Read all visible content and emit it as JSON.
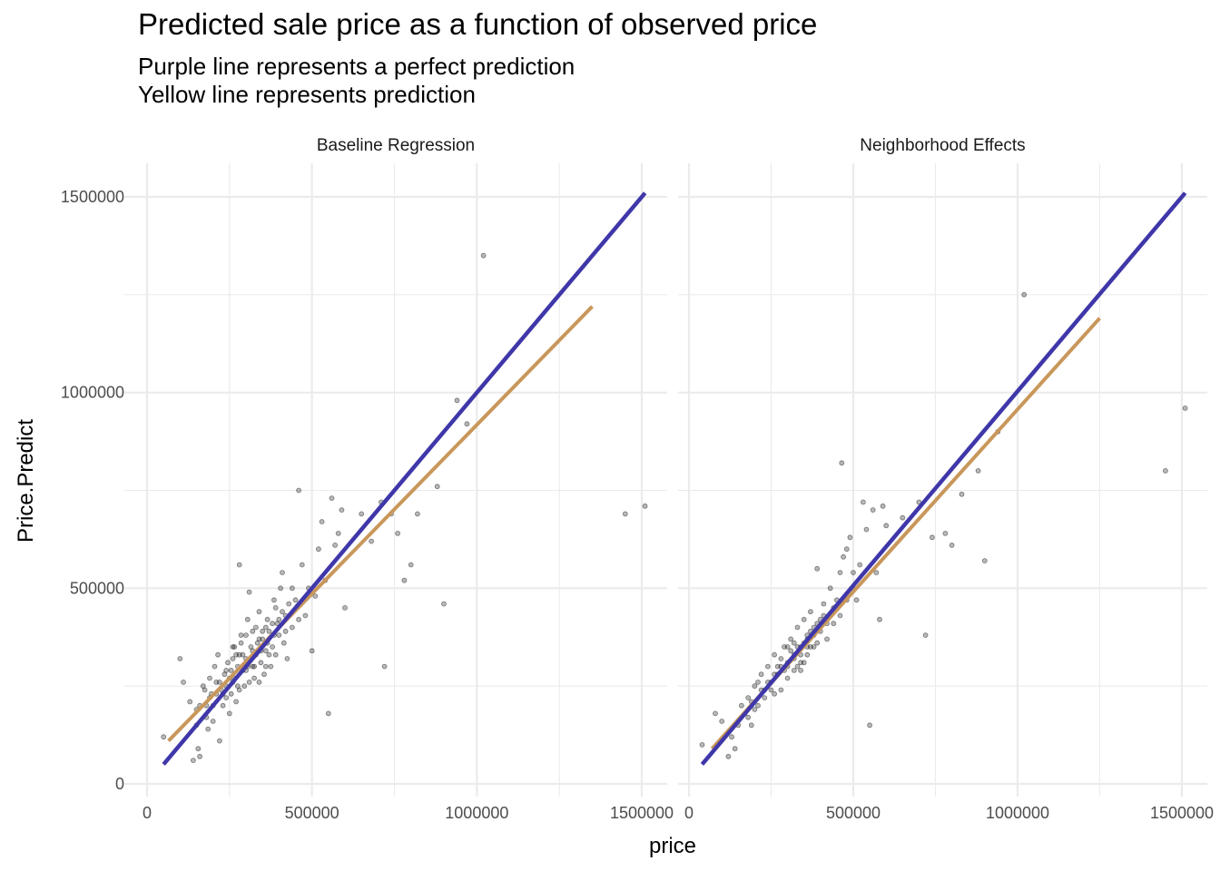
{
  "chart_data": {
    "type": "scatter",
    "title": "Predicted sale price as a function of observed price",
    "subtitle_lines": [
      "Purple line represents a perfect prediction",
      "Yellow line represents prediction"
    ],
    "xlabel": "price",
    "ylabel": "Price.Predict",
    "xlim": [
      0,
      1500000
    ],
    "ylim": [
      0,
      1500000
    ],
    "x_ticks": [
      0,
      500000,
      1000000,
      1500000
    ],
    "x_tick_labels": [
      "0",
      "500000",
      "1000000",
      "1500000"
    ],
    "y_ticks": [
      0,
      500000,
      1000000,
      1500000
    ],
    "y_tick_labels": [
      "0",
      "500000",
      "1000000",
      "1500000"
    ],
    "grid": true,
    "colors": {
      "perfect_line": "#3f37a9",
      "fit_line": "#c9975a",
      "points": "#000000",
      "grid": "#ebebeb"
    },
    "panels": [
      {
        "name": "Baseline Regression",
        "perfect_line": [
          [
            50000,
            50000
          ],
          [
            1510000,
            1510000
          ]
        ],
        "fit_line": [
          [
            65000,
            110000
          ],
          [
            1350000,
            1220000
          ]
        ],
        "points": [
          [
            50000,
            120000
          ],
          [
            100000,
            320000
          ],
          [
            110000,
            260000
          ],
          [
            130000,
            210000
          ],
          [
            140000,
            60000
          ],
          [
            150000,
            190000
          ],
          [
            155000,
            90000
          ],
          [
            160000,
            70000
          ],
          [
            175000,
            240000
          ],
          [
            180000,
            170000
          ],
          [
            185000,
            140000
          ],
          [
            190000,
            270000
          ],
          [
            195000,
            230000
          ],
          [
            200000,
            160000
          ],
          [
            205000,
            300000
          ],
          [
            210000,
            260000
          ],
          [
            215000,
            330000
          ],
          [
            220000,
            110000
          ],
          [
            225000,
            240000
          ],
          [
            230000,
            200000
          ],
          [
            235000,
            280000
          ],
          [
            240000,
            250000
          ],
          [
            245000,
            310000
          ],
          [
            250000,
            180000
          ],
          [
            255000,
            230000
          ],
          [
            260000,
            350000
          ],
          [
            265000,
            270000
          ],
          [
            270000,
            210000
          ],
          [
            275000,
            300000
          ],
          [
            280000,
            560000
          ],
          [
            285000,
            380000
          ],
          [
            290000,
            330000
          ],
          [
            295000,
            250000
          ],
          [
            300000,
            290000
          ],
          [
            305000,
            420000
          ],
          [
            310000,
            490000
          ],
          [
            315000,
            350000
          ],
          [
            320000,
            300000
          ],
          [
            325000,
            270000
          ],
          [
            330000,
            400000
          ],
          [
            335000,
            360000
          ],
          [
            340000,
            440000
          ],
          [
            345000,
            310000
          ],
          [
            350000,
            370000
          ],
          [
            355000,
            280000
          ],
          [
            360000,
            340000
          ],
          [
            365000,
            420000
          ],
          [
            370000,
            390000
          ],
          [
            375000,
            300000
          ],
          [
            380000,
            350000
          ],
          [
            385000,
            470000
          ],
          [
            390000,
            330000
          ],
          [
            395000,
            410000
          ],
          [
            400000,
            380000
          ],
          [
            405000,
            500000
          ],
          [
            410000,
            540000
          ],
          [
            415000,
            360000
          ],
          [
            420000,
            430000
          ],
          [
            425000,
            320000
          ],
          [
            430000,
            460000
          ],
          [
            440000,
            400000
          ],
          [
            450000,
            470000
          ],
          [
            460000,
            750000
          ],
          [
            470000,
            560000
          ],
          [
            480000,
            430000
          ],
          [
            490000,
            500000
          ],
          [
            500000,
            340000
          ],
          [
            510000,
            480000
          ],
          [
            520000,
            600000
          ],
          [
            530000,
            670000
          ],
          [
            540000,
            520000
          ],
          [
            550000,
            180000
          ],
          [
            560000,
            730000
          ],
          [
            570000,
            610000
          ],
          [
            580000,
            640000
          ],
          [
            590000,
            700000
          ],
          [
            600000,
            450000
          ],
          [
            650000,
            690000
          ],
          [
            680000,
            620000
          ],
          [
            710000,
            720000
          ],
          [
            720000,
            300000
          ],
          [
            740000,
            690000
          ],
          [
            760000,
            640000
          ],
          [
            780000,
            520000
          ],
          [
            800000,
            560000
          ],
          [
            820000,
            690000
          ],
          [
            880000,
            760000
          ],
          [
            900000,
            460000
          ],
          [
            940000,
            980000
          ],
          [
            970000,
            920000
          ],
          [
            1020000,
            1350000
          ],
          [
            1450000,
            690000
          ],
          [
            1510000,
            710000
          ],
          [
            230000,
            230000
          ],
          [
            240000,
            290000
          ],
          [
            260000,
            260000
          ],
          [
            280000,
            240000
          ],
          [
            300000,
            320000
          ],
          [
            320000,
            340000
          ],
          [
            340000,
            260000
          ],
          [
            360000,
            300000
          ],
          [
            380000,
            410000
          ],
          [
            260000,
            320000
          ],
          [
            250000,
            270000
          ],
          [
            270000,
            330000
          ],
          [
            290000,
            290000
          ],
          [
            310000,
            260000
          ],
          [
            330000,
            330000
          ],
          [
            350000,
            390000
          ],
          [
            370000,
            330000
          ],
          [
            390000,
            450000
          ],
          [
            410000,
            440000
          ],
          [
            420000,
            390000
          ],
          [
            440000,
            500000
          ],
          [
            460000,
            420000
          ],
          [
            200000,
            200000
          ],
          [
            210000,
            230000
          ],
          [
            220000,
            260000
          ],
          [
            190000,
            220000
          ],
          [
            180000,
            200000
          ],
          [
            170000,
            250000
          ],
          [
            160000,
            200000
          ],
          [
            150000,
            150000
          ],
          [
            240000,
            220000
          ],
          [
            300000,
            380000
          ],
          [
            320000,
            390000
          ],
          [
            340000,
            370000
          ],
          [
            360000,
            400000
          ],
          [
            280000,
            330000
          ],
          [
            265000,
            350000
          ],
          [
            275000,
            250000
          ],
          [
            305000,
            300000
          ],
          [
            325000,
            300000
          ],
          [
            345000,
            340000
          ],
          [
            365000,
            360000
          ],
          [
            385000,
            380000
          ],
          [
            400000,
            420000
          ],
          [
            255000,
            290000
          ],
          [
            285000,
            360000
          ]
        ]
      },
      {
        "name": "Neighborhood Effects",
        "perfect_line": [
          [
            40000,
            50000
          ],
          [
            1510000,
            1510000
          ]
        ],
        "fit_line": [
          [
            70000,
            90000
          ],
          [
            1250000,
            1190000
          ]
        ],
        "points": [
          [
            40000,
            100000
          ],
          [
            80000,
            180000
          ],
          [
            100000,
            160000
          ],
          [
            120000,
            70000
          ],
          [
            130000,
            120000
          ],
          [
            140000,
            90000
          ],
          [
            150000,
            150000
          ],
          [
            160000,
            200000
          ],
          [
            170000,
            180000
          ],
          [
            180000,
            220000
          ],
          [
            190000,
            150000
          ],
          [
            200000,
            250000
          ],
          [
            210000,
            200000
          ],
          [
            220000,
            280000
          ],
          [
            230000,
            240000
          ],
          [
            240000,
            300000
          ],
          [
            250000,
            260000
          ],
          [
            260000,
            330000
          ],
          [
            270000,
            280000
          ],
          [
            280000,
            240000
          ],
          [
            290000,
            350000
          ],
          [
            300000,
            310000
          ],
          [
            310000,
            370000
          ],
          [
            320000,
            330000
          ],
          [
            330000,
            400000
          ],
          [
            340000,
            290000
          ],
          [
            350000,
            420000
          ],
          [
            360000,
            370000
          ],
          [
            370000,
            440000
          ],
          [
            380000,
            350000
          ],
          [
            390000,
            550000
          ],
          [
            400000,
            390000
          ],
          [
            410000,
            460000
          ],
          [
            420000,
            370000
          ],
          [
            430000,
            500000
          ],
          [
            440000,
            410000
          ],
          [
            450000,
            470000
          ],
          [
            460000,
            540000
          ],
          [
            465000,
            820000
          ],
          [
            470000,
            580000
          ],
          [
            480000,
            600000
          ],
          [
            490000,
            630000
          ],
          [
            500000,
            540000
          ],
          [
            510000,
            470000
          ],
          [
            520000,
            560000
          ],
          [
            530000,
            720000
          ],
          [
            540000,
            650000
          ],
          [
            550000,
            150000
          ],
          [
            560000,
            700000
          ],
          [
            570000,
            540000
          ],
          [
            580000,
            420000
          ],
          [
            590000,
            710000
          ],
          [
            600000,
            660000
          ],
          [
            650000,
            680000
          ],
          [
            700000,
            720000
          ],
          [
            720000,
            380000
          ],
          [
            740000,
            630000
          ],
          [
            780000,
            640000
          ],
          [
            800000,
            610000
          ],
          [
            830000,
            740000
          ],
          [
            880000,
            800000
          ],
          [
            900000,
            570000
          ],
          [
            940000,
            900000
          ],
          [
            1020000,
            1250000
          ],
          [
            1450000,
            800000
          ],
          [
            1510000,
            960000
          ],
          [
            300000,
            300000
          ],
          [
            320000,
            320000
          ],
          [
            340000,
            350000
          ],
          [
            360000,
            380000
          ],
          [
            380000,
            400000
          ],
          [
            400000,
            420000
          ],
          [
            250000,
            240000
          ],
          [
            270000,
            300000
          ],
          [
            290000,
            290000
          ],
          [
            310000,
            340000
          ],
          [
            330000,
            350000
          ],
          [
            350000,
            360000
          ],
          [
            370000,
            390000
          ],
          [
            390000,
            410000
          ],
          [
            410000,
            430000
          ],
          [
            230000,
            220000
          ],
          [
            210000,
            260000
          ],
          [
            240000,
            260000
          ],
          [
            260000,
            280000
          ],
          [
            280000,
            320000
          ],
          [
            300000,
            350000
          ],
          [
            320000,
            360000
          ],
          [
            340000,
            330000
          ],
          [
            360000,
            330000
          ],
          [
            380000,
            380000
          ],
          [
            200000,
            190000
          ],
          [
            190000,
            210000
          ],
          [
            180000,
            170000
          ],
          [
            220000,
            240000
          ],
          [
            260000,
            230000
          ],
          [
            280000,
            300000
          ],
          [
            300000,
            270000
          ],
          [
            320000,
            290000
          ],
          [
            340000,
            310000
          ],
          [
            360000,
            350000
          ],
          [
            420000,
            410000
          ],
          [
            440000,
            450000
          ],
          [
            460000,
            430000
          ],
          [
            480000,
            470000
          ],
          [
            500000,
            500000
          ],
          [
            330000,
            300000
          ],
          [
            350000,
            310000
          ],
          [
            370000,
            350000
          ],
          [
            390000,
            360000
          ]
        ]
      }
    ]
  }
}
